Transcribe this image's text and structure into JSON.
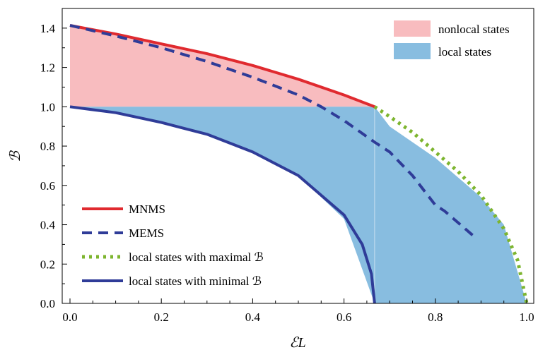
{
  "chart_data": {
    "type": "area",
    "xlabel": "ℰL",
    "ylabel": "ℬ",
    "xlim": [
      0,
      1
    ],
    "ylim": [
      0,
      1.5
    ],
    "x_ticks": [
      "0.0",
      "0.2",
      "0.4",
      "0.6",
      "0.8",
      "1.0"
    ],
    "y_ticks": [
      "0.0",
      "0.2",
      "0.4",
      "0.6",
      "0.8",
      "1.0",
      "1.2",
      "1.4"
    ],
    "regions": [
      {
        "name": "nonlocal states",
        "color": "#f8bcbf",
        "description_points": [
          [
            0,
            1.414
          ],
          [
            0.1,
            1.37
          ],
          [
            0.2,
            1.32
          ],
          [
            0.3,
            1.27
          ],
          [
            0.4,
            1.21
          ],
          [
            0.5,
            1.14
          ],
          [
            0.6,
            1.06
          ],
          [
            0.667,
            1.0
          ],
          [
            0,
            1.0
          ]
        ]
      },
      {
        "name": "local states",
        "color": "#88bde0",
        "description_points": [
          [
            0,
            1.0
          ],
          [
            0.667,
            1.0
          ],
          [
            0.7,
            0.9
          ],
          [
            0.8,
            0.74
          ],
          [
            0.9,
            0.54
          ],
          [
            0.95,
            0.4
          ],
          [
            1.0,
            0.0
          ],
          [
            0.667,
            0.0
          ],
          [
            0.6,
            0.43
          ],
          [
            0.5,
            0.65
          ],
          [
            0.4,
            0.77
          ],
          [
            0.3,
            0.86
          ],
          [
            0.2,
            0.92
          ],
          [
            0.1,
            0.97
          ],
          [
            0,
            1.0
          ]
        ]
      }
    ],
    "series": [
      {
        "name": "MNMS",
        "style": "solid",
        "color": "#e02a2f",
        "points": [
          [
            0,
            1.414
          ],
          [
            0.1,
            1.37
          ],
          [
            0.2,
            1.32
          ],
          [
            0.3,
            1.27
          ],
          [
            0.4,
            1.21
          ],
          [
            0.5,
            1.14
          ],
          [
            0.6,
            1.06
          ],
          [
            0.667,
            1.0
          ]
        ]
      },
      {
        "name": "MEMS",
        "style": "dashed",
        "color": "#2f3c98",
        "points": [
          [
            0,
            1.414
          ],
          [
            0.1,
            1.36
          ],
          [
            0.2,
            1.3
          ],
          [
            0.3,
            1.23
          ],
          [
            0.4,
            1.15
          ],
          [
            0.5,
            1.06
          ],
          [
            0.55,
            1.0
          ],
          [
            0.6,
            0.93
          ],
          [
            0.667,
            0.82
          ],
          [
            0.7,
            0.77
          ],
          [
            0.75,
            0.65
          ],
          [
            0.8,
            0.5
          ],
          [
            0.82,
            0.47
          ],
          [
            0.89,
            0.33
          ]
        ]
      },
      {
        "name": "local states with maximal ℬ",
        "style": "dotted",
        "color": "#7db52f",
        "points": [
          [
            0.667,
            1.0
          ],
          [
            0.7,
            0.95
          ],
          [
            0.75,
            0.87
          ],
          [
            0.8,
            0.77
          ],
          [
            0.85,
            0.67
          ],
          [
            0.9,
            0.55
          ],
          [
            0.95,
            0.38
          ],
          [
            0.98,
            0.22
          ],
          [
            1.0,
            0.0
          ]
        ]
      },
      {
        "name": "local states with minimal ℬ",
        "style": "solid",
        "color": "#2f3c98",
        "points": [
          [
            0,
            1.0
          ],
          [
            0.1,
            0.97
          ],
          [
            0.2,
            0.92
          ],
          [
            0.3,
            0.86
          ],
          [
            0.4,
            0.77
          ],
          [
            0.5,
            0.65
          ],
          [
            0.6,
            0.45
          ],
          [
            0.64,
            0.3
          ],
          [
            0.66,
            0.15
          ],
          [
            0.667,
            0.0
          ]
        ]
      }
    ],
    "legend_top_right": [
      "nonlocal states",
      "local states"
    ],
    "legend_bottom_left": [
      "MNMS",
      "MEMS",
      "local states with maximal ℬ",
      "local states with minimal ℬ"
    ],
    "grid": false
  }
}
